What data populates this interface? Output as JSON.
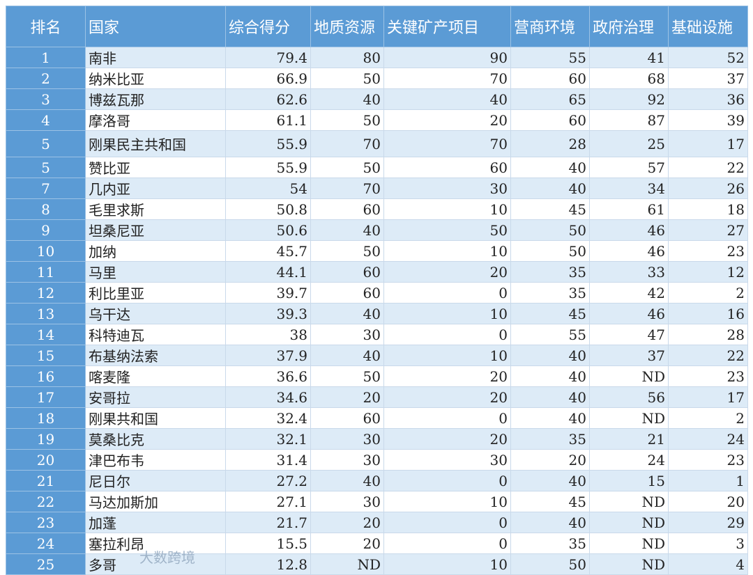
{
  "headers": [
    "排名",
    "国家",
    "综合得分",
    "地质资源",
    "关键矿产项目",
    "营商环境",
    "政府治理",
    "基础设施"
  ],
  "rows": [
    [
      "1",
      "南非",
      "79.4",
      "80",
      "90",
      "55",
      "41",
      "52"
    ],
    [
      "2",
      "纳米比亚",
      "66.9",
      "50",
      "70",
      "60",
      "68",
      "37"
    ],
    [
      "3",
      "博兹瓦那",
      "62.6",
      "40",
      "40",
      "65",
      "92",
      "36"
    ],
    [
      "4",
      "摩洛哥",
      "61.1",
      "50",
      "20",
      "60",
      "87",
      "39"
    ],
    [
      "5",
      "刚果民主共和国",
      "55.9",
      "70",
      "70",
      "28",
      "25",
      "17"
    ],
    [
      "5",
      "赞比亚",
      "55.9",
      "50",
      "60",
      "40",
      "57",
      "22"
    ],
    [
      "7",
      "几内亚",
      "54",
      "70",
      "30",
      "40",
      "34",
      "26"
    ],
    [
      "8",
      "毛里求斯",
      "50.8",
      "60",
      "10",
      "45",
      "61",
      "18"
    ],
    [
      "9",
      "坦桑尼亚",
      "50.6",
      "40",
      "50",
      "50",
      "46",
      "27"
    ],
    [
      "10",
      "加纳",
      "45.7",
      "50",
      "10",
      "50",
      "46",
      "23"
    ],
    [
      "11",
      "马里",
      "44.1",
      "60",
      "20",
      "35",
      "33",
      "12"
    ],
    [
      "12",
      "利比里亚",
      "39.7",
      "60",
      "0",
      "35",
      "42",
      "2"
    ],
    [
      "13",
      "乌干达",
      "39.3",
      "40",
      "10",
      "45",
      "46",
      "16"
    ],
    [
      "14",
      "科特迪瓦",
      "38",
      "30",
      "0",
      "55",
      "47",
      "28"
    ],
    [
      "15",
      "布基纳法索",
      "37.9",
      "40",
      "10",
      "40",
      "37",
      "22"
    ],
    [
      "16",
      "喀麦隆",
      "36.6",
      "50",
      "20",
      "40",
      "ND",
      "23"
    ],
    [
      "17",
      "安哥拉",
      "34.6",
      "20",
      "20",
      "40",
      "56",
      "17"
    ],
    [
      "18",
      "刚果共和国",
      "32.4",
      "60",
      "0",
      "40",
      "ND",
      "2"
    ],
    [
      "19",
      "莫桑比克",
      "32.1",
      "30",
      "20",
      "35",
      "21",
      "24"
    ],
    [
      "20",
      "津巴布韦",
      "31.4",
      "30",
      "30",
      "20",
      "24",
      "23"
    ],
    [
      "21",
      "尼日尔",
      "27.2",
      "40",
      "0",
      "40",
      "15",
      "1"
    ],
    [
      "22",
      "马达加斯加",
      "27.1",
      "30",
      "10",
      "45",
      "ND",
      "20"
    ],
    [
      "23",
      "加蓬",
      "21.7",
      "20",
      "0",
      "40",
      "ND",
      "29"
    ],
    [
      "24",
      "塞拉利昂",
      "15.5",
      "20",
      "0",
      "35",
      "ND",
      "3"
    ],
    [
      "25",
      "多哥",
      "12.8",
      "ND",
      "10",
      "50",
      "ND",
      "4"
    ]
  ],
  "watermark": "大数跨境",
  "colors": {
    "header": "#5b9bd5",
    "row_alt": "#ddebf7",
    "row": "#ffffff"
  }
}
